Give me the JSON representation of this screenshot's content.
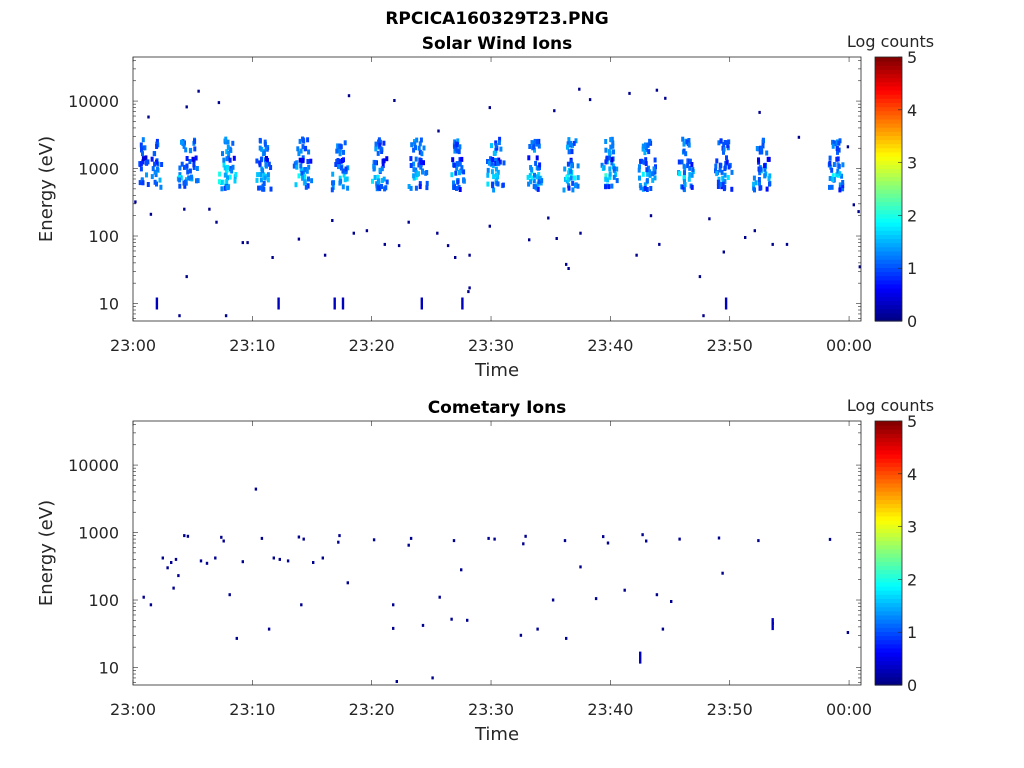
{
  "figure": {
    "title": "RPCICA160329T23.PNG"
  },
  "chart_data": [
    {
      "type": "heatmap",
      "title": "Solar Wind Ions",
      "xlabel": "Time",
      "ylabel": "Energy (eV)",
      "x_tick_labels": [
        "23:00",
        "23:10",
        "23:20",
        "23:30",
        "23:40",
        "23:50",
        "00:00"
      ],
      "x_ticks_minutes": [
        0,
        10,
        20,
        30,
        40,
        50,
        60
      ],
      "xlim_minutes": [
        0,
        61
      ],
      "y_scale": "log",
      "ylim": [
        5.5,
        45000
      ],
      "y_tick_labels": [
        "10",
        "100",
        "1000",
        "10000"
      ],
      "y_ticks": [
        10,
        100,
        1000,
        10000
      ],
      "colorbar": {
        "label": "Log counts",
        "range": [
          0,
          5
        ],
        "tick_labels": [
          "0",
          "1",
          "2",
          "3",
          "4",
          "5"
        ]
      },
      "bursts": [
        {
          "t": 0.9,
          "logc": 1.7
        },
        {
          "t": 1.9,
          "logc": 1.8
        },
        {
          "t": 4.3,
          "logc": 1.9
        },
        {
          "t": 5.0,
          "logc": 1.8
        },
        {
          "t": 7.7,
          "logc": 2.3
        },
        {
          "t": 8.2,
          "logc": 1.9
        },
        {
          "t": 10.8,
          "logc": 2.0
        },
        {
          "t": 11.1,
          "logc": 1.8
        },
        {
          "t": 14.0,
          "logc": 2.1
        },
        {
          "t": 14.5,
          "logc": 1.8
        },
        {
          "t": 17.2,
          "logc": 1.9
        },
        {
          "t": 17.6,
          "logc": 1.8
        },
        {
          "t": 20.5,
          "logc": 2.0
        },
        {
          "t": 20.8,
          "logc": 1.7
        },
        {
          "t": 23.6,
          "logc": 2.0
        },
        {
          "t": 24.2,
          "logc": 1.7
        },
        {
          "t": 27.0,
          "logc": 1.9
        },
        {
          "t": 27.3,
          "logc": 1.7
        },
        {
          "t": 30.2,
          "logc": 2.1
        },
        {
          "t": 30.6,
          "logc": 1.8
        },
        {
          "t": 33.5,
          "logc": 2.0
        },
        {
          "t": 33.8,
          "logc": 1.8
        },
        {
          "t": 36.6,
          "logc": 2.1
        },
        {
          "t": 36.9,
          "logc": 1.8
        },
        {
          "t": 39.8,
          "logc": 2.2
        },
        {
          "t": 40.1,
          "logc": 1.8
        },
        {
          "t": 42.9,
          "logc": 2.0
        },
        {
          "t": 43.3,
          "logc": 1.8
        },
        {
          "t": 46.2,
          "logc": 2.0
        },
        {
          "t": 46.5,
          "logc": 1.8
        },
        {
          "t": 49.3,
          "logc": 1.7
        },
        {
          "t": 49.7,
          "logc": 1.8
        },
        {
          "t": 52.5,
          "logc": 1.9
        },
        {
          "t": 52.9,
          "logc": 1.7
        },
        {
          "t": 58.8,
          "logc": 2.0
        },
        {
          "t": 59.0,
          "logc": 1.8
        }
      ],
      "scatter": [
        {
          "t": 1.3,
          "e": 5800
        },
        {
          "t": 4.5,
          "e": 8200
        },
        {
          "t": 5.5,
          "e": 14000
        },
        {
          "t": 7.2,
          "e": 9500
        },
        {
          "t": 18.1,
          "e": 12000
        },
        {
          "t": 21.9,
          "e": 10200
        },
        {
          "t": 25.6,
          "e": 3600
        },
        {
          "t": 29.9,
          "e": 8000
        },
        {
          "t": 35.3,
          "e": 7200
        },
        {
          "t": 37.4,
          "e": 15000
        },
        {
          "t": 38.3,
          "e": 10500
        },
        {
          "t": 41.6,
          "e": 13000
        },
        {
          "t": 43.9,
          "e": 14500
        },
        {
          "t": 44.6,
          "e": 11000
        },
        {
          "t": 52.5,
          "e": 6800
        },
        {
          "t": 55.8,
          "e": 2900
        },
        {
          "t": 59.9,
          "e": 2100
        },
        {
          "t": 0.2,
          "e": 320
        },
        {
          "t": 1.5,
          "e": 210
        },
        {
          "t": 4.3,
          "e": 250
        },
        {
          "t": 6.4,
          "e": 250
        },
        {
          "t": 7.0,
          "e": 160
        },
        {
          "t": 9.2,
          "e": 80
        },
        {
          "t": 9.6,
          "e": 80
        },
        {
          "t": 11.7,
          "e": 48
        },
        {
          "t": 13.9,
          "e": 90
        },
        {
          "t": 16.1,
          "e": 52
        },
        {
          "t": 16.7,
          "e": 170
        },
        {
          "t": 18.5,
          "e": 110
        },
        {
          "t": 19.6,
          "e": 120
        },
        {
          "t": 21.1,
          "e": 75
        },
        {
          "t": 22.3,
          "e": 72
        },
        {
          "t": 23.1,
          "e": 160
        },
        {
          "t": 25.5,
          "e": 110
        },
        {
          "t": 26.4,
          "e": 72
        },
        {
          "t": 27.0,
          "e": 48
        },
        {
          "t": 28.2,
          "e": 52
        },
        {
          "t": 29.9,
          "e": 140
        },
        {
          "t": 33.2,
          "e": 88
        },
        {
          "t": 34.8,
          "e": 185
        },
        {
          "t": 35.5,
          "e": 92
        },
        {
          "t": 37.5,
          "e": 110
        },
        {
          "t": 42.2,
          "e": 52
        },
        {
          "t": 43.4,
          "e": 200
        },
        {
          "t": 44.1,
          "e": 75
        },
        {
          "t": 48.3,
          "e": 180
        },
        {
          "t": 49.5,
          "e": 58
        },
        {
          "t": 51.3,
          "e": 95
        },
        {
          "t": 52.1,
          "e": 120
        },
        {
          "t": 53.6,
          "e": 75
        },
        {
          "t": 54.8,
          "e": 75
        },
        {
          "t": 60.4,
          "e": 290
        },
        {
          "t": 60.8,
          "e": 230
        },
        {
          "t": 60.9,
          "e": 35
        },
        {
          "t": 36.3,
          "e": 38
        },
        {
          "t": 36.5,
          "e": 33
        },
        {
          "t": 47.5,
          "e": 25
        },
        {
          "t": 4.5,
          "e": 25
        },
        {
          "t": 28.1,
          "e": 15
        },
        {
          "t": 28.2,
          "e": 17
        },
        {
          "t": 3.9,
          "e": 6.6
        },
        {
          "t": 7.8,
          "e": 6.6
        },
        {
          "t": 47.8,
          "e": 6.6
        }
      ],
      "streaks": [
        {
          "t": 2.0,
          "e": 10
        },
        {
          "t": 12.2,
          "e": 10
        },
        {
          "t": 16.9,
          "e": 10
        },
        {
          "t": 17.6,
          "e": 10
        },
        {
          "t": 24.2,
          "e": 10
        },
        {
          "t": 27.6,
          "e": 10
        },
        {
          "t": 49.7,
          "e": 10
        }
      ]
    },
    {
      "type": "heatmap",
      "title": "Cometary Ions",
      "xlabel": "Time",
      "ylabel": "Energy (eV)",
      "x_tick_labels": [
        "23:00",
        "23:10",
        "23:20",
        "23:30",
        "23:40",
        "23:50",
        "00:00"
      ],
      "x_ticks_minutes": [
        0,
        10,
        20,
        30,
        40,
        50,
        60
      ],
      "xlim_minutes": [
        0,
        61
      ],
      "y_scale": "log",
      "ylim": [
        5.5,
        45000
      ],
      "y_tick_labels": [
        "10",
        "100",
        "1000",
        "10000"
      ],
      "y_ticks": [
        10,
        100,
        1000,
        10000
      ],
      "colorbar": {
        "label": "Log counts",
        "range": [
          0,
          5
        ],
        "tick_labels": [
          "0",
          "1",
          "2",
          "3",
          "4",
          "5"
        ]
      },
      "scatter": [
        {
          "t": 4.3,
          "e": 900
        },
        {
          "t": 4.6,
          "e": 880
        },
        {
          "t": 7.4,
          "e": 850
        },
        {
          "t": 7.6,
          "e": 750
        },
        {
          "t": 10.8,
          "e": 820
        },
        {
          "t": 13.9,
          "e": 860
        },
        {
          "t": 14.3,
          "e": 800
        },
        {
          "t": 17.3,
          "e": 900
        },
        {
          "t": 17.2,
          "e": 720
        },
        {
          "t": 20.2,
          "e": 780
        },
        {
          "t": 23.3,
          "e": 820
        },
        {
          "t": 23.1,
          "e": 650
        },
        {
          "t": 26.9,
          "e": 760
        },
        {
          "t": 29.8,
          "e": 820
        },
        {
          "t": 30.3,
          "e": 800
        },
        {
          "t": 32.9,
          "e": 880
        },
        {
          "t": 32.7,
          "e": 680
        },
        {
          "t": 36.2,
          "e": 760
        },
        {
          "t": 39.4,
          "e": 870
        },
        {
          "t": 39.8,
          "e": 700
        },
        {
          "t": 42.7,
          "e": 930
        },
        {
          "t": 43.0,
          "e": 750
        },
        {
          "t": 45.8,
          "e": 800
        },
        {
          "t": 49.1,
          "e": 830
        },
        {
          "t": 52.4,
          "e": 760
        },
        {
          "t": 58.4,
          "e": 790
        },
        {
          "t": 2.5,
          "e": 420
        },
        {
          "t": 2.9,
          "e": 300
        },
        {
          "t": 3.2,
          "e": 360
        },
        {
          "t": 3.6,
          "e": 400
        },
        {
          "t": 3.8,
          "e": 230
        },
        {
          "t": 3.4,
          "e": 150
        },
        {
          "t": 5.7,
          "e": 380
        },
        {
          "t": 6.2,
          "e": 350
        },
        {
          "t": 6.9,
          "e": 420
        },
        {
          "t": 9.2,
          "e": 370
        },
        {
          "t": 11.8,
          "e": 420
        },
        {
          "t": 12.3,
          "e": 400
        },
        {
          "t": 13.0,
          "e": 380
        },
        {
          "t": 15.1,
          "e": 360
        },
        {
          "t": 15.9,
          "e": 420
        },
        {
          "t": 18.0,
          "e": 180
        },
        {
          "t": 27.5,
          "e": 280
        },
        {
          "t": 37.5,
          "e": 310
        },
        {
          "t": 0.9,
          "e": 110
        },
        {
          "t": 1.5,
          "e": 85
        },
        {
          "t": 8.1,
          "e": 120
        },
        {
          "t": 14.1,
          "e": 85
        },
        {
          "t": 21.8,
          "e": 85
        },
        {
          "t": 25.7,
          "e": 110
        },
        {
          "t": 28.0,
          "e": 50
        },
        {
          "t": 32.5,
          "e": 30
        },
        {
          "t": 35.2,
          "e": 100
        },
        {
          "t": 38.8,
          "e": 105
        },
        {
          "t": 41.2,
          "e": 140
        },
        {
          "t": 43.9,
          "e": 120
        },
        {
          "t": 45.1,
          "e": 95
        },
        {
          "t": 49.4,
          "e": 250
        },
        {
          "t": 53.6,
          "e": 45
        },
        {
          "t": 59.9,
          "e": 33
        },
        {
          "t": 8.7,
          "e": 27
        },
        {
          "t": 11.4,
          "e": 37
        },
        {
          "t": 21.8,
          "e": 38
        },
        {
          "t": 24.3,
          "e": 42
        },
        {
          "t": 26.7,
          "e": 52
        },
        {
          "t": 33.9,
          "e": 37
        },
        {
          "t": 36.3,
          "e": 27
        },
        {
          "t": 44.4,
          "e": 37
        },
        {
          "t": 10.3,
          "e": 4400
        },
        {
          "t": 22.1,
          "e": 6.2
        },
        {
          "t": 25.1,
          "e": 7.0
        }
      ],
      "streaks": [
        {
          "t": 42.5,
          "e": 14
        },
        {
          "t": 53.6,
          "e": 44
        }
      ]
    }
  ]
}
